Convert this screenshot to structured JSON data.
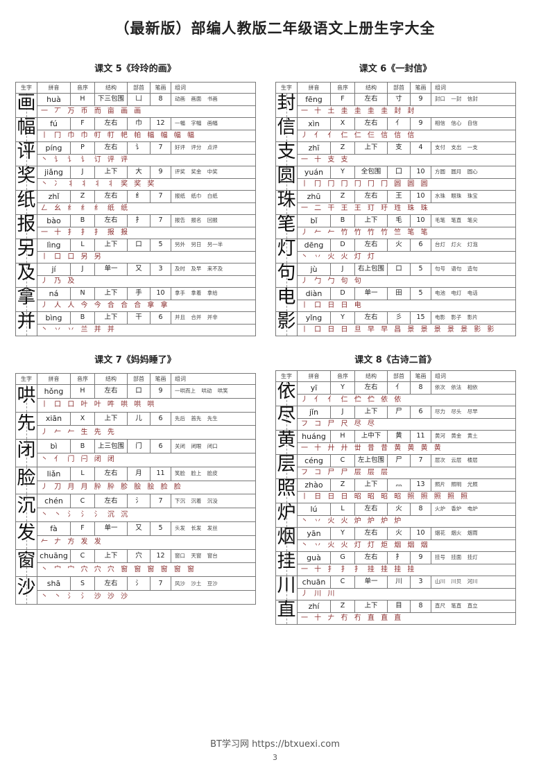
{
  "title": "（最新版）部编人教版二年级语文上册生字大全",
  "headers": [
    "生字",
    "拼音",
    "音序",
    "结构",
    "部首",
    "笔画",
    "组词"
  ],
  "lessons": [
    {
      "name": "课文 5《玲玲的画》",
      "rows": [
        {
          "char": "画",
          "pinyin": "huà",
          "initial": "H",
          "structure": "下三包围",
          "radical": "凵",
          "count": "8",
          "words": "动画 画面 书画",
          "strokes": "一 丆 万 币 而 亩 画 画"
        },
        {
          "char": "幅",
          "pinyin": "fú",
          "initial": "F",
          "structure": "左右",
          "radical": "巾",
          "count": "12",
          "words": "一幅 字幅 画幅",
          "strokes": "丨 冂 巾 巾 帄 帄 帊 帕 幅 幅 幅 幅"
        },
        {
          "char": "评",
          "pinyin": "píng",
          "initial": "P",
          "structure": "左右",
          "radical": "讠",
          "count": "7",
          "words": "好评 评分 点评",
          "strokes": "丶 讠 讠 讠 订 评 评"
        },
        {
          "char": "奖",
          "pinyin": "jiǎng",
          "initial": "J",
          "structure": "上下",
          "radical": "大",
          "count": "9",
          "words": "评奖 奖金 中奖",
          "strokes": "丶 冫 丬 丬 丬 丬 奖 奖 奖"
        },
        {
          "char": "纸",
          "pinyin": "zhǐ",
          "initial": "Z",
          "structure": "左右",
          "radical": "纟",
          "count": "7",
          "words": "报纸 纸巾 白纸",
          "strokes": "𠃋 幺 纟 纟 纟 纸 纸"
        },
        {
          "char": "报",
          "pinyin": "bào",
          "initial": "B",
          "structure": "左右",
          "radical": "扌",
          "count": "7",
          "words": "报告 报名 回报",
          "strokes": "一 十 扌 扌 扌 报 报"
        },
        {
          "char": "另",
          "pinyin": "lìng",
          "initial": "L",
          "structure": "上下",
          "radical": "口",
          "count": "5",
          "words": "另外 另日 另一半",
          "strokes": "丨 口 口 另 另"
        },
        {
          "char": "及",
          "pinyin": "jí",
          "initial": "J",
          "structure": "单一",
          "radical": "又",
          "count": "3",
          "words": "及时 及早 来不及",
          "strokes": "丿 乃 及"
        },
        {
          "char": "拿",
          "pinyin": "ná",
          "initial": "N",
          "structure": "上下",
          "radical": "手",
          "count": "10",
          "words": "拿手 拿着 拿给",
          "strokes": "丿 人 人 今 今 合 合 合 拿 拿"
        },
        {
          "char": "并",
          "pinyin": "bìng",
          "initial": "B",
          "structure": "上下",
          "radical": "干",
          "count": "6",
          "words": "并且 合并 并非",
          "strokes": "丶 丷 丷 兰 并 并"
        }
      ]
    },
    {
      "name": "课文 6《一封信》",
      "rows": [
        {
          "char": "封",
          "pinyin": "fēng",
          "initial": "F",
          "structure": "左右",
          "radical": "寸",
          "count": "9",
          "words": "封口 一封 信封",
          "strokes": "一 十 土 圭 圭 圭 圭 封 封"
        },
        {
          "char": "信",
          "pinyin": "xìn",
          "initial": "X",
          "structure": "左右",
          "radical": "亻",
          "count": "9",
          "words": "相信 信心 自信",
          "strokes": "丿 亻 亻 仁 仁 仨 信 信 信"
        },
        {
          "char": "支",
          "pinyin": "zhī",
          "initial": "Z",
          "structure": "上下",
          "radical": "支",
          "count": "4",
          "words": "支付 支出 一支",
          "strokes": "一 十 支 支"
        },
        {
          "char": "圆",
          "pinyin": "yuán",
          "initial": "Y",
          "structure": "全包围",
          "radical": "囗",
          "count": "10",
          "words": "方圆 圆月 圆心",
          "strokes": "丨 冂 冂 冂 冂 冂 冂 圆 圆 圆"
        },
        {
          "char": "珠",
          "pinyin": "zhū",
          "initial": "Z",
          "structure": "左右",
          "radical": "王",
          "count": "10",
          "words": "水珠 眼珠 珠宝",
          "strokes": "一 二 干 王 王 玎 玗 珄 珠 珠"
        },
        {
          "char": "笔",
          "pinyin": "bǐ",
          "initial": "B",
          "structure": "上下",
          "radical": "毛",
          "count": "10",
          "words": "毛笔 笔直 笔尖",
          "strokes": "丿 𠂉 𠂉 竹 竹 竹 竹 竺 笔 笔"
        },
        {
          "char": "灯",
          "pinyin": "dēng",
          "initial": "D",
          "structure": "左右",
          "radical": "火",
          "count": "6",
          "words": "台灯 灯火 灯泡",
          "strokes": "丶 丷 火 火 灯 灯"
        },
        {
          "char": "句",
          "pinyin": "jù",
          "initial": "J",
          "structure": "右上包围",
          "radical": "口",
          "count": "5",
          "words": "句号 语句 造句",
          "strokes": "丿 勹 勹 句 句"
        },
        {
          "char": "电",
          "pinyin": "diàn",
          "initial": "D",
          "structure": "单一",
          "radical": "田",
          "count": "5",
          "words": "电池 电灯 电话",
          "strokes": "丨 口 日 日 电"
        },
        {
          "char": "影",
          "pinyin": "yǐng",
          "initial": "Y",
          "structure": "左右",
          "radical": "彡",
          "count": "15",
          "words": "电影 影子 影片",
          "strokes": "丨 口 日 日 旦 早 早 昌 景 景 景 景 景 影 影"
        }
      ]
    },
    {
      "name": "课文 7《妈妈睡了》",
      "rows": [
        {
          "char": "哄",
          "pinyin": "hǒng",
          "initial": "H",
          "structure": "左右",
          "radical": "口",
          "count": "9",
          "words": "一哄而上 哄动 哄笑",
          "strokes": "丨 口 口 叶 叶 吽 哄 哄 哄"
        },
        {
          "char": "先",
          "pinyin": "xiān",
          "initial": "X",
          "structure": "上下",
          "radical": "儿",
          "count": "6",
          "words": "先后 首先 先生",
          "strokes": "丿 𠂉 𠂉 生 先 先"
        },
        {
          "char": "闭",
          "pinyin": "bì",
          "initial": "B",
          "structure": "上三包围",
          "radical": "门",
          "count": "6",
          "words": "关闭 闭眼 闭口",
          "strokes": "丶 亻 门 闩 闭 闭"
        },
        {
          "char": "脸",
          "pinyin": "liǎn",
          "initial": "L",
          "structure": "左右",
          "radical": "月",
          "count": "11",
          "words": "笑脸 脸上 脸皮",
          "strokes": "丿 刀 月 月 肸 肸 胗 脍 脍 脸 脸"
        },
        {
          "char": "沉",
          "pinyin": "chén",
          "initial": "C",
          "structure": "左右",
          "radical": "氵",
          "count": "7",
          "words": "下沉 沉着 沉没",
          "strokes": "丶 丶 氵 氵 氵 沉 沉"
        },
        {
          "char": "发",
          "pinyin": "fà",
          "initial": "F",
          "structure": "单一",
          "radical": "又",
          "count": "5",
          "words": "头发 长发 发丝",
          "strokes": "𠂉 𠂇 方 发 发"
        },
        {
          "char": "窗",
          "pinyin": "chuāng",
          "initial": "C",
          "structure": "上下",
          "radical": "穴",
          "count": "12",
          "words": "窗口 天窗 窗台",
          "strokes": "丶 宀 宀 穴 穴 穴 窗 窗 窗 窗 窗 窗"
        },
        {
          "char": "沙",
          "pinyin": "shā",
          "initial": "S",
          "structure": "左右",
          "radical": "氵",
          "count": "7",
          "words": "风沙 沙土 豆沙",
          "strokes": "丶 丶 氵 氵 沙 沙 沙"
        }
      ]
    },
    {
      "name": "课文 8《古诗二首》",
      "rows": [
        {
          "char": "依",
          "pinyin": "yī",
          "initial": "Y",
          "structure": "左右",
          "radical": "亻",
          "count": "8",
          "words": "依次 依法 相依",
          "strokes": "丿 亻 亻 仁 伫 伫 依 依"
        },
        {
          "char": "尽",
          "pinyin": "jǐn",
          "initial": "J",
          "structure": "上下",
          "radical": "尸",
          "count": "6",
          "words": "尽力 尽头 尽早",
          "strokes": "フ コ 尸 尺 尽 尽"
        },
        {
          "char": "黄",
          "pinyin": "huáng",
          "initial": "H",
          "structure": "上中下",
          "radical": "黄",
          "count": "11",
          "words": "黄河 黄金 黄土",
          "strokes": "一 十 廾 廾 丗 昔 昔 黄 黄 黄 黄"
        },
        {
          "char": "层",
          "pinyin": "céng",
          "initial": "C",
          "structure": "左上包围",
          "radical": "尸",
          "count": "7",
          "words": "层次 云层 楼层",
          "strokes": "フ コ 尸 尸 层 层 层"
        },
        {
          "char": "照",
          "pinyin": "zhào",
          "initial": "Z",
          "structure": "上下",
          "radical": "灬",
          "count": "13",
          "words": "照片 照明 光照",
          "strokes": "丨 日 日 日 昭 昭 昭 昭 照 照 照 照 照"
        },
        {
          "char": "炉",
          "pinyin": "lú",
          "initial": "L",
          "structure": "左右",
          "radical": "火",
          "count": "8",
          "words": "火炉 香炉 电炉",
          "strokes": "丶 丷 火 火 炉 炉 炉 炉"
        },
        {
          "char": "烟",
          "pinyin": "yān",
          "initial": "Y",
          "structure": "左右",
          "radical": "火",
          "count": "10",
          "words": "烟花 烟火 烟雨",
          "strokes": "丶 丷 火 火 灯 灯 炬 烟 烟 烟"
        },
        {
          "char": "挂",
          "pinyin": "guà",
          "initial": "G",
          "structure": "左右",
          "radical": "扌",
          "count": "9",
          "words": "挂号 挂面 挂灯",
          "strokes": "一 十 扌 扌 扌 挂 挂 挂 挂"
        },
        {
          "char": "川",
          "pinyin": "chuān",
          "initial": "C",
          "structure": "单一",
          "radical": "川",
          "count": "3",
          "words": "山川 川贝 河川",
          "strokes": "丿 川 川"
        },
        {
          "char": "直",
          "pinyin": "zhí",
          "initial": "Z",
          "structure": "上下",
          "radical": "目",
          "count": "8",
          "words": "直尺 笔直 直立",
          "strokes": "一 十 𠂇 冇 冇 直 直 直"
        }
      ]
    }
  ],
  "footer": {
    "text": "BT学习网 https://btxuexi.com",
    "page": "3"
  }
}
